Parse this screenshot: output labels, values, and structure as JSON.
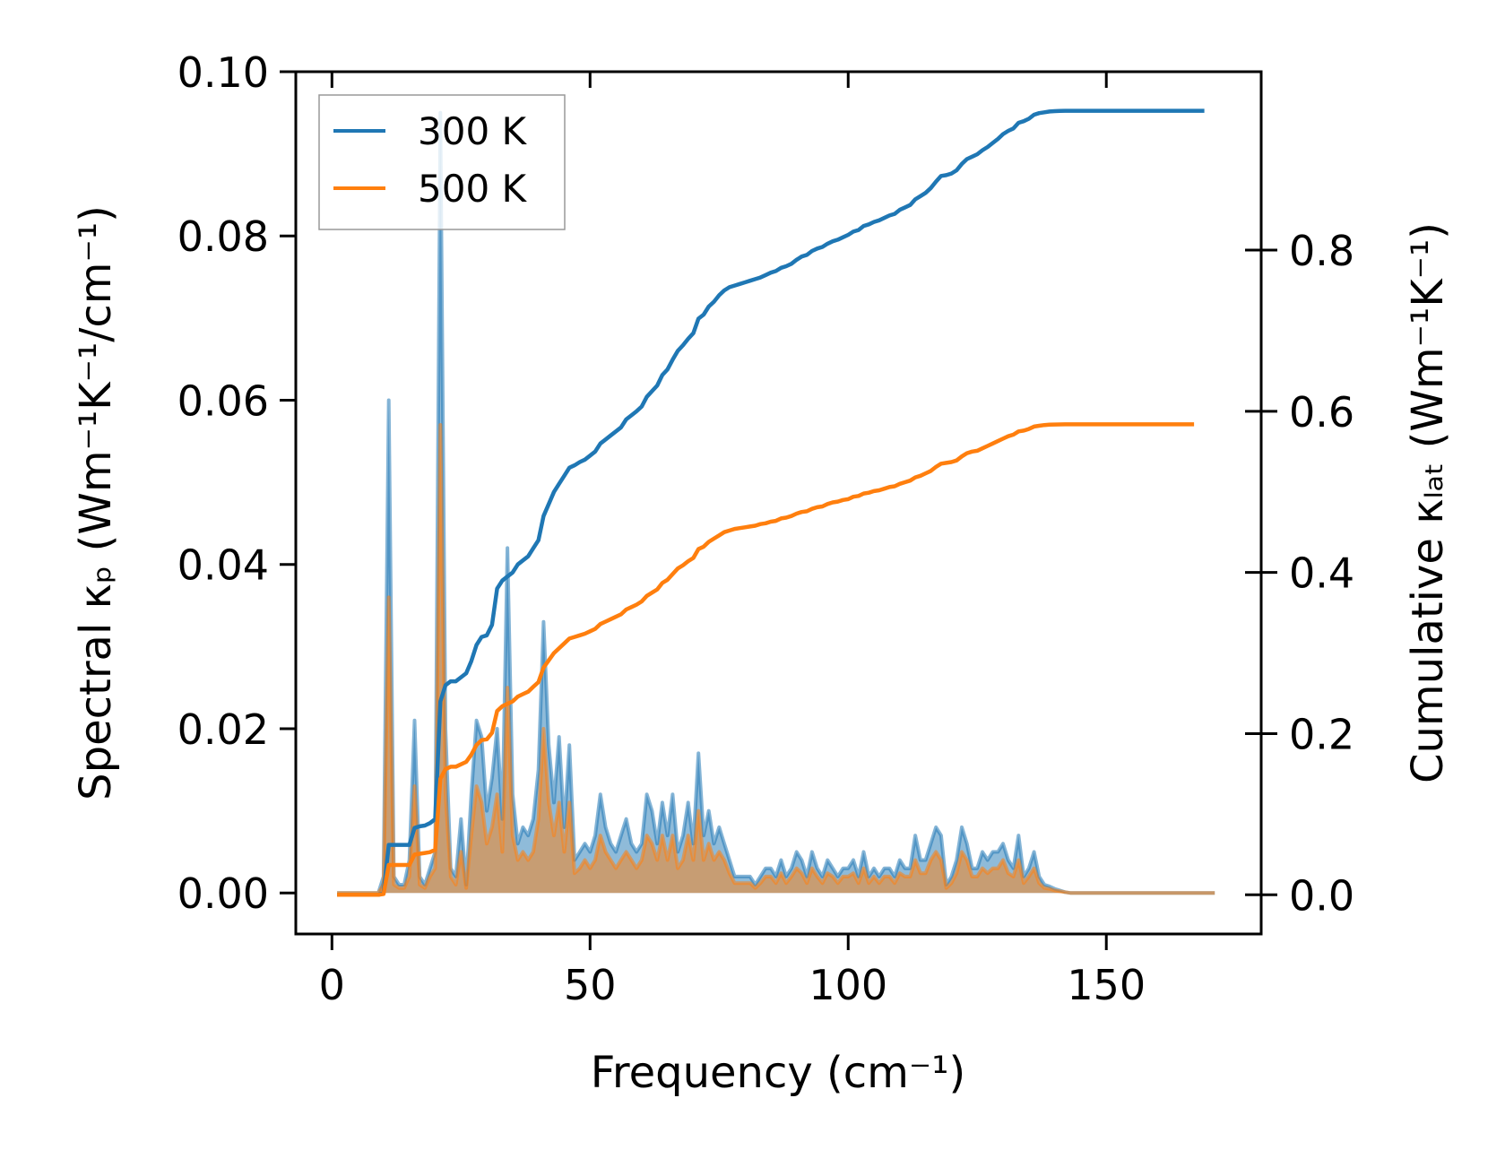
{
  "chart_data": {
    "type": "line",
    "x": [
      1,
      2,
      3,
      4,
      5,
      6,
      7,
      8,
      9,
      10,
      11,
      12,
      13,
      14,
      15,
      16,
      17,
      18,
      19,
      20,
      21,
      22,
      23,
      24,
      25,
      26,
      27,
      28,
      29,
      30,
      31,
      32,
      33,
      34,
      35,
      36,
      37,
      38,
      39,
      40,
      41,
      42,
      43,
      44,
      45,
      46,
      47,
      48,
      49,
      50,
      51,
      52,
      53,
      54,
      55,
      56,
      57,
      58,
      59,
      60,
      61,
      62,
      63,
      64,
      65,
      66,
      67,
      68,
      69,
      70,
      71,
      72,
      73,
      74,
      75,
      76,
      77,
      78,
      79,
      80,
      81,
      82,
      83,
      84,
      85,
      86,
      87,
      88,
      89,
      90,
      91,
      92,
      93,
      94,
      95,
      96,
      97,
      98,
      99,
      100,
      101,
      102,
      103,
      104,
      105,
      106,
      107,
      108,
      109,
      110,
      111,
      112,
      113,
      114,
      115,
      116,
      117,
      118,
      119,
      120,
      121,
      122,
      123,
      124,
      125,
      126,
      127,
      128,
      129,
      130,
      131,
      132,
      133,
      134,
      135,
      136,
      137,
      138,
      139,
      140,
      141,
      142,
      143,
      144,
      145,
      146,
      147,
      148,
      149,
      150,
      151,
      152,
      153,
      154,
      155,
      156,
      157,
      158,
      159,
      160,
      161,
      162,
      163,
      164,
      165,
      166,
      167,
      168,
      169,
      170,
      171
    ],
    "series": [
      {
        "name": "300 K",
        "color": "#1f77b4",
        "spectral": [
          0,
          0,
          0,
          0,
          0,
          0,
          0,
          0,
          0,
          0.002,
          0.06,
          0.002,
          0.001,
          0.001,
          0.004,
          0.021,
          0.002,
          0.001,
          0.003,
          0.005,
          0.095,
          0.02,
          0.003,
          0.002,
          0.009,
          0.001,
          0.012,
          0.021,
          0.019,
          0.01,
          0.014,
          0.02,
          0.009,
          0.042,
          0.012,
          0.006,
          0.008,
          0.007,
          0.009,
          0.015,
          0.033,
          0.018,
          0.011,
          0.019,
          0.008,
          0.018,
          0.004,
          0.005,
          0.006,
          0.005,
          0.007,
          0.012,
          0.008,
          0.006,
          0.005,
          0.007,
          0.009,
          0.006,
          0.005,
          0.006,
          0.012,
          0.01,
          0.006,
          0.011,
          0.007,
          0.012,
          0.005,
          0.007,
          0.011,
          0.006,
          0.017,
          0.007,
          0.01,
          0.006,
          0.008,
          0.006,
          0.004,
          0.002,
          0.002,
          0.002,
          0.002,
          0.001,
          0.002,
          0.003,
          0.003,
          0.002,
          0.004,
          0.002,
          0.003,
          0.005,
          0.004,
          0.002,
          0.005,
          0.003,
          0.002,
          0.004,
          0.003,
          0.002,
          0.003,
          0.003,
          0.004,
          0.002,
          0.005,
          0.002,
          0.003,
          0.002,
          0.003,
          0.003,
          0.002,
          0.004,
          0.003,
          0.003,
          0.007,
          0.004,
          0.004,
          0.006,
          0.008,
          0.007,
          0.001,
          0.002,
          0.004,
          0.008,
          0.006,
          0.003,
          0.003,
          0.005,
          0.004,
          0.005,
          0.005,
          0.006,
          0.004,
          0.003,
          0.007,
          0.002,
          0.003,
          0.005,
          0.002,
          0.001,
          0.0008,
          0.0005,
          0.0003,
          0.0001,
          0,
          0,
          0,
          0,
          0,
          0,
          0,
          0,
          0,
          0,
          0,
          0,
          0,
          0,
          0,
          0,
          0,
          0,
          0,
          0,
          0,
          0,
          0,
          0,
          0,
          0,
          0,
          0,
          0
        ],
        "cumulative": [
          0,
          0,
          0,
          0,
          0,
          0,
          0,
          0,
          0,
          0.002,
          0.062,
          0.062,
          0.062,
          0.062,
          0.062,
          0.083,
          0.085,
          0.086,
          0.089,
          0.094,
          0.24,
          0.26,
          0.265,
          0.265,
          0.27,
          0.275,
          0.29,
          0.31,
          0.32,
          0.322,
          0.335,
          0.38,
          0.39,
          0.395,
          0.4,
          0.41,
          0.415,
          0.42,
          0.43,
          0.44,
          0.47,
          0.485,
          0.5,
          0.51,
          0.52,
          0.53,
          0.533,
          0.537,
          0.54,
          0.545,
          0.55,
          0.56,
          0.565,
          0.57,
          0.575,
          0.58,
          0.59,
          0.595,
          0.6,
          0.606,
          0.618,
          0.625,
          0.632,
          0.645,
          0.652,
          0.664,
          0.675,
          0.682,
          0.69,
          0.697,
          0.715,
          0.72,
          0.73,
          0.736,
          0.744,
          0.75,
          0.754,
          0.756,
          0.758,
          0.76,
          0.762,
          0.764,
          0.766,
          0.769,
          0.772,
          0.774,
          0.778,
          0.78,
          0.783,
          0.788,
          0.792,
          0.794,
          0.799,
          0.802,
          0.804,
          0.808,
          0.811,
          0.813,
          0.816,
          0.819,
          0.823,
          0.825,
          0.83,
          0.832,
          0.835,
          0.837,
          0.84,
          0.843,
          0.845,
          0.85,
          0.853,
          0.856,
          0.863,
          0.867,
          0.871,
          0.877,
          0.885,
          0.892,
          0.893,
          0.895,
          0.899,
          0.907,
          0.913,
          0.916,
          0.919,
          0.924,
          0.928,
          0.933,
          0.938,
          0.944,
          0.948,
          0.951,
          0.958,
          0.96,
          0.963,
          0.968,
          0.97,
          0.971,
          0.972,
          0.9725,
          0.9728,
          0.9729,
          0.9729,
          0.9729,
          0.9729,
          0.9729,
          0.9729,
          0.9729,
          0.9729,
          0.9729,
          0.9729,
          0.9729,
          0.9729,
          0.9729,
          0.9729,
          0.9729,
          0.9729,
          0.9729,
          0.9729,
          0.9729,
          0.9729,
          0.9729,
          0.9729,
          0.9729,
          0.9729,
          0.9729,
          0.9729,
          0.9729,
          0.9729
        ]
      },
      {
        "name": "500 K",
        "color": "#ff7f0e",
        "spectral": [
          0,
          0,
          0,
          0,
          0,
          0,
          0,
          0,
          0,
          0.001,
          0.036,
          0.001,
          0.0006,
          0.0006,
          0.002,
          0.013,
          0.001,
          0.0006,
          0.002,
          0.003,
          0.057,
          0.012,
          0.002,
          0.001,
          0.005,
          0.0006,
          0.007,
          0.013,
          0.011,
          0.006,
          0.008,
          0.012,
          0.005,
          0.025,
          0.007,
          0.004,
          0.005,
          0.004,
          0.005,
          0.009,
          0.02,
          0.011,
          0.007,
          0.011,
          0.005,
          0.011,
          0.0024,
          0.003,
          0.004,
          0.003,
          0.004,
          0.007,
          0.005,
          0.004,
          0.003,
          0.004,
          0.005,
          0.004,
          0.003,
          0.004,
          0.007,
          0.006,
          0.004,
          0.007,
          0.004,
          0.007,
          0.003,
          0.004,
          0.007,
          0.004,
          0.01,
          0.004,
          0.006,
          0.004,
          0.005,
          0.004,
          0.0024,
          0.0012,
          0.0012,
          0.0012,
          0.0012,
          0.0006,
          0.0012,
          0.002,
          0.002,
          0.0012,
          0.0024,
          0.0012,
          0.002,
          0.003,
          0.0024,
          0.0012,
          0.003,
          0.002,
          0.0012,
          0.0024,
          0.002,
          0.0012,
          0.002,
          0.002,
          0.0024,
          0.0012,
          0.003,
          0.0012,
          0.002,
          0.0012,
          0.002,
          0.002,
          0.0012,
          0.0024,
          0.002,
          0.002,
          0.004,
          0.0024,
          0.0024,
          0.004,
          0.005,
          0.004,
          0.0006,
          0.0012,
          0.0024,
          0.005,
          0.004,
          0.002,
          0.002,
          0.003,
          0.0024,
          0.003,
          0.003,
          0.004,
          0.0024,
          0.002,
          0.004,
          0.0012,
          0.002,
          0.003,
          0.0012,
          0.0006,
          0.0005,
          0.0003,
          0.0002,
          0.0001,
          0,
          0,
          0,
          0,
          0,
          0,
          0,
          0,
          0,
          0,
          0,
          0,
          0,
          0,
          0,
          0,
          0,
          0,
          0,
          0,
          0,
          0,
          0,
          0,
          0,
          0,
          0,
          0,
          0
        ],
        "cumulative": [
          0,
          0,
          0,
          0,
          0,
          0,
          0,
          0,
          0,
          0.001,
          0.037,
          0.037,
          0.037,
          0.037,
          0.037,
          0.05,
          0.051,
          0.052,
          0.053,
          0.056,
          0.144,
          0.156,
          0.159,
          0.159,
          0.162,
          0.165,
          0.174,
          0.186,
          0.192,
          0.193,
          0.201,
          0.228,
          0.234,
          0.237,
          0.24,
          0.246,
          0.249,
          0.252,
          0.258,
          0.264,
          0.282,
          0.291,
          0.3,
          0.306,
          0.312,
          0.318,
          0.32,
          0.322,
          0.324,
          0.327,
          0.33,
          0.336,
          0.339,
          0.342,
          0.345,
          0.348,
          0.354,
          0.357,
          0.36,
          0.364,
          0.371,
          0.375,
          0.379,
          0.387,
          0.391,
          0.398,
          0.405,
          0.409,
          0.414,
          0.418,
          0.429,
          0.432,
          0.438,
          0.442,
          0.446,
          0.45,
          0.452,
          0.454,
          0.455,
          0.456,
          0.457,
          0.458,
          0.46,
          0.461,
          0.463,
          0.464,
          0.467,
          0.468,
          0.47,
          0.473,
          0.475,
          0.476,
          0.479,
          0.481,
          0.482,
          0.485,
          0.487,
          0.488,
          0.49,
          0.491,
          0.494,
          0.495,
          0.498,
          0.499,
          0.501,
          0.502,
          0.504,
          0.506,
          0.507,
          0.51,
          0.512,
          0.514,
          0.518,
          0.52,
          0.523,
          0.526,
          0.531,
          0.535,
          0.536,
          0.537,
          0.539,
          0.544,
          0.548,
          0.55,
          0.551,
          0.554,
          0.557,
          0.56,
          0.563,
          0.566,
          0.569,
          0.571,
          0.575,
          0.576,
          0.578,
          0.581,
          0.582,
          0.583,
          0.5834,
          0.5836,
          0.5837,
          0.5838,
          0.5838,
          0.5838,
          0.5838,
          0.5838,
          0.5838,
          0.5838,
          0.5838,
          0.5838,
          0.5838,
          0.5838,
          0.5838,
          0.5838,
          0.5838,
          0.5838,
          0.5838,
          0.5838,
          0.5838,
          0.5838,
          0.5838,
          0.5838,
          0.5838,
          0.5838,
          0.5838,
          0.5838,
          0.5838
        ]
      }
    ],
    "xlim": [
      -7,
      180
    ],
    "ylim_left": [
      -0.005,
      0.1
    ],
    "ylim_right": [
      -0.0486,
      1.0214
    ],
    "x_ticks": [
      0,
      50,
      100,
      150
    ],
    "x_tick_labels": [
      "0",
      "50",
      "100",
      "150"
    ],
    "y_left_ticks": [
      0,
      0.02,
      0.04,
      0.06,
      0.08,
      0.1
    ],
    "y_left_tick_labels": [
      "0.00",
      "0.02",
      "0.04",
      "0.06",
      "0.08",
      "0.10"
    ],
    "y_right_ticks": [
      0,
      0.2,
      0.4,
      0.6,
      0.8
    ],
    "y_right_tick_labels": [
      "0.0",
      "0.2",
      "0.4",
      "0.6",
      "0.8"
    ],
    "xlabel": "Frequency (cm⁻¹)",
    "ylabel_left": "Spectral κₚ (Wm⁻¹K⁻¹/cm⁻¹)",
    "ylabel_right": "Cumulative κₗₐₜ (Wm⁻¹K⁻¹)",
    "legend": {
      "position": "upper-left",
      "entries": [
        "300 K",
        "500 K"
      ]
    },
    "grid": false
  }
}
